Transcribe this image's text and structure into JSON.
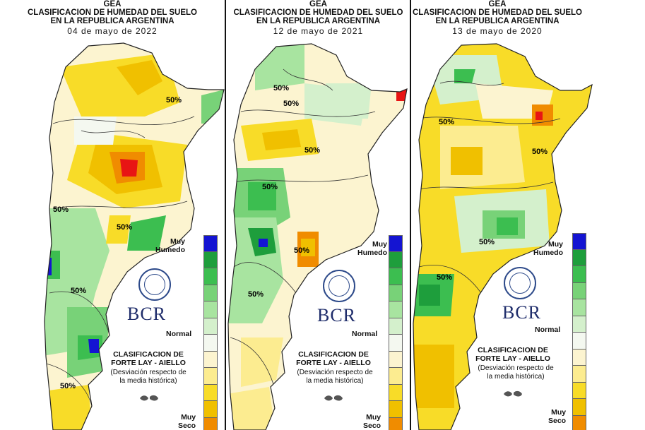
{
  "panels": [
    {
      "gea": "GEA",
      "title1": "CLASIFICACION DE HUMEDAD DEL SUELO",
      "title2": "EN LA REPUBLICA ARGENTINA",
      "date": "04 de mayo de 2022",
      "contour_labels": [
        "50%",
        "50%",
        "50%",
        "50%",
        "50%"
      ]
    },
    {
      "gea": "GEA",
      "title1": "CLASIFICACION DE HUMEDAD DEL SUELO",
      "title2": "EN LA REPUBLICA ARGENTINA",
      "date": "12 de mayo de 2021",
      "contour_labels": [
        "50%",
        "50%",
        "50%",
        "50%",
        "50%",
        "50%"
      ]
    },
    {
      "gea": "GEA",
      "title1": "CLASIFICACION DE HUMEDAD DEL SUELO",
      "title2": "EN LA REPUBLICA ARGENTINA",
      "date": "13 de mayo de 2020",
      "contour_labels": [
        "50%",
        "50%",
        "50%",
        "50%"
      ]
    }
  ],
  "legend": {
    "top_label_1": "Muy",
    "top_label_2": "Humedo",
    "mid_label": "Normal",
    "bottom_label_1": "Muy",
    "bottom_label_2": "Seco",
    "colors": [
      "#1414d2",
      "#1e9e3c",
      "#3cbe50",
      "#78d278",
      "#a8e4a0",
      "#d4f0cc",
      "#f4f8f0",
      "#fcf4d0",
      "#fcec90",
      "#f8dc28",
      "#f0c000",
      "#f08c00",
      "#e81414"
    ]
  },
  "branding": {
    "logo_text": "BCR",
    "seal_text": "BOLSA DE COMERCIO DE ROSARIO"
  },
  "classification": {
    "line1": "CLASIFICACION DE",
    "line2": "FORTE LAY - AIELLO",
    "note1": "(Desviación respecto de",
    "note2": "la media histórica)"
  }
}
